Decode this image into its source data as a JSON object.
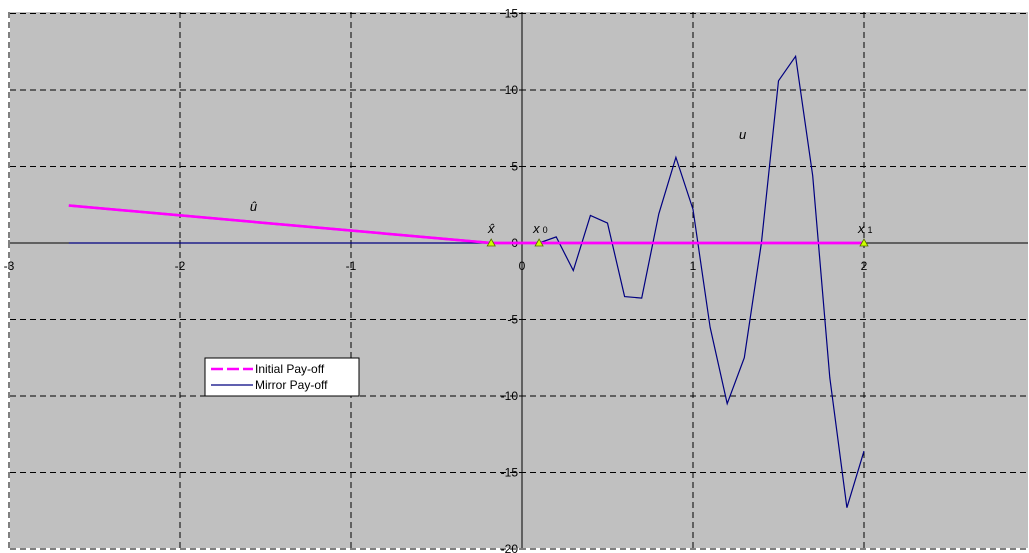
{
  "chart_data": {
    "type": "line",
    "xlim": [
      -3,
      3
    ],
    "ylim": [
      -20,
      15
    ],
    "x_ticks": [
      -3,
      -2,
      -1,
      0,
      1,
      2
    ],
    "y_ticks": [
      -20,
      -15,
      -10,
      -5,
      0,
      5,
      10,
      15
    ],
    "grid": true,
    "legend_position": "left-middle",
    "colors": {
      "plot_bg": "#c0c0c0",
      "grid": "#000000",
      "initial": "#ff00ff",
      "mirror": "#000080",
      "marker": "#ccff00"
    },
    "series": [
      {
        "name": "Initial Pay-off",
        "style": "dashed",
        "x": [
          -2.65,
          -0.18,
          0.1,
          2.0
        ],
        "y": [
          2.45,
          0,
          0,
          0
        ]
      },
      {
        "name": "Mirror Pay-off",
        "style": "solid",
        "x": [
          -2.65,
          0.1,
          0.2,
          0.3,
          0.4,
          0.5,
          0.6,
          0.7,
          0.8,
          0.9,
          1.0,
          1.1,
          1.2,
          1.3,
          1.4,
          1.5,
          1.6,
          1.7,
          1.8,
          1.9,
          2.0
        ],
        "y": [
          0,
          0,
          0.4,
          -1.8,
          1.8,
          1.3,
          -3.5,
          -3.6,
          1.9,
          5.6,
          2.2,
          -5.5,
          -10.5,
          -7.5,
          0,
          10.6,
          12.2,
          4.4,
          -8.8,
          -17.3,
          -13.6
        ]
      }
    ],
    "markers": [
      {
        "label": "x̂",
        "x": -0.18,
        "y": 0
      },
      {
        "label": "x",
        "sub": "0",
        "x": 0.1,
        "y": 0
      },
      {
        "label": "x",
        "sub": "1",
        "x": 2.0,
        "y": 0
      }
    ],
    "annotations": [
      {
        "text": "û",
        "x": -1.57,
        "y": 2.1
      },
      {
        "text": "u",
        "x": 1.29,
        "y": 6.8
      }
    ]
  }
}
